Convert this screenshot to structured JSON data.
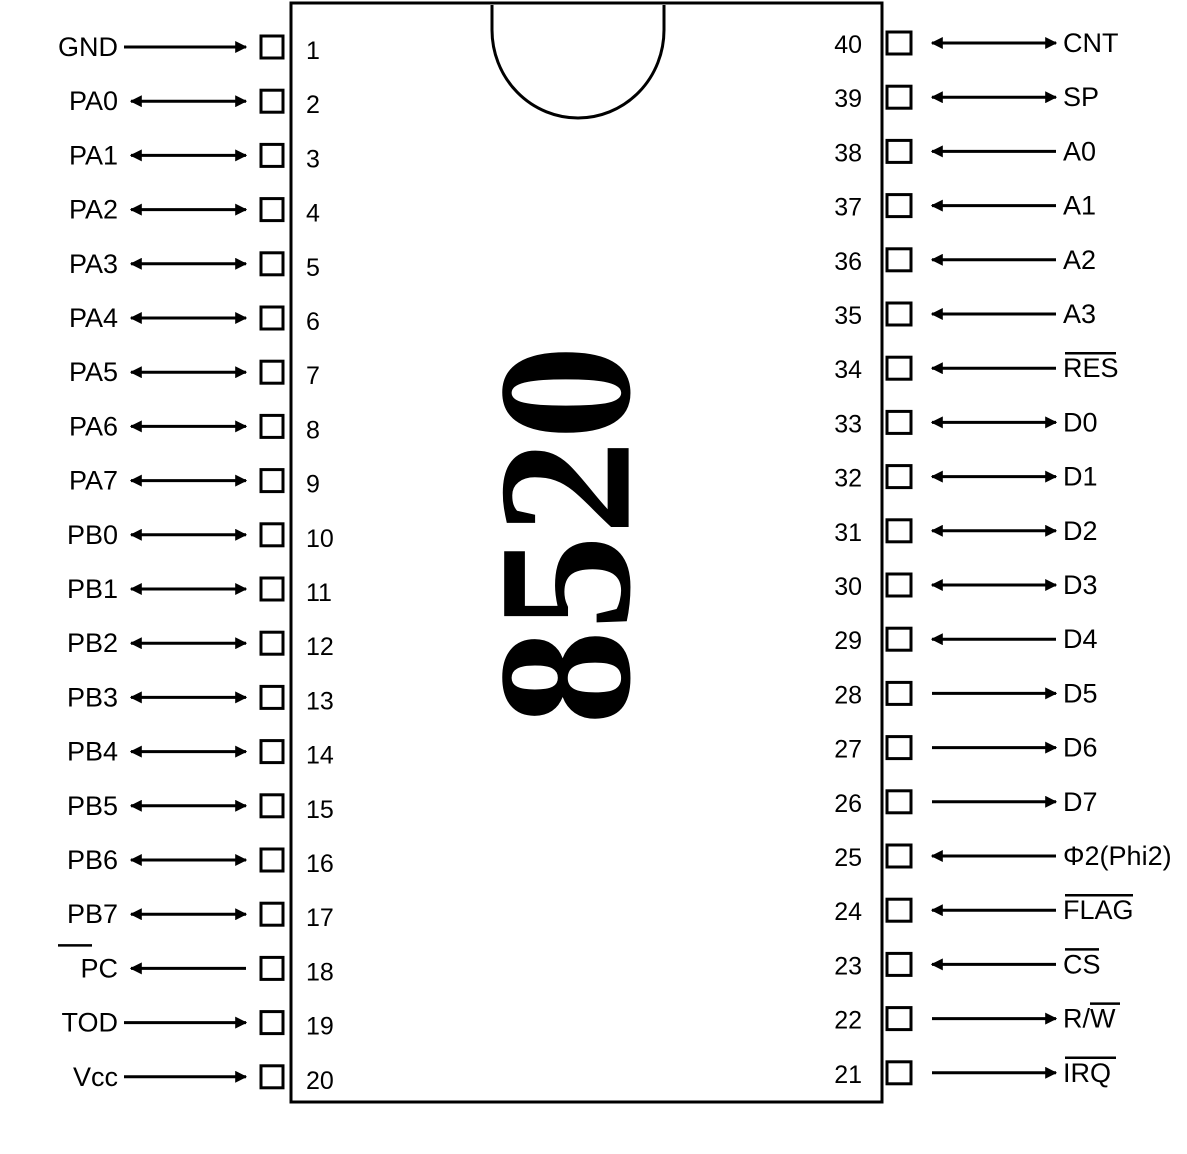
{
  "chip": {
    "label": "8520"
  },
  "left_pins": [
    {
      "number": "1",
      "signal": "GND",
      "direction": "in",
      "overline": false
    },
    {
      "number": "2",
      "signal": "PA0",
      "direction": "bidir",
      "overline": false
    },
    {
      "number": "3",
      "signal": "PA1",
      "direction": "bidir",
      "overline": false
    },
    {
      "number": "4",
      "signal": "PA2",
      "direction": "bidir",
      "overline": false
    },
    {
      "number": "5",
      "signal": "PA3",
      "direction": "bidir",
      "overline": false
    },
    {
      "number": "6",
      "signal": "PA4",
      "direction": "bidir",
      "overline": false
    },
    {
      "number": "7",
      "signal": "PA5",
      "direction": "bidir",
      "overline": false
    },
    {
      "number": "8",
      "signal": "PA6",
      "direction": "bidir",
      "overline": false
    },
    {
      "number": "9",
      "signal": "PA7",
      "direction": "bidir",
      "overline": false
    },
    {
      "number": "10",
      "signal": "PB0",
      "direction": "bidir",
      "overline": false
    },
    {
      "number": "11",
      "signal": "PB1",
      "direction": "bidir",
      "overline": false
    },
    {
      "number": "12",
      "signal": "PB2",
      "direction": "bidir",
      "overline": false
    },
    {
      "number": "13",
      "signal": "PB3",
      "direction": "bidir",
      "overline": false
    },
    {
      "number": "14",
      "signal": "PB4",
      "direction": "bidir",
      "overline": false
    },
    {
      "number": "15",
      "signal": "PB5",
      "direction": "bidir",
      "overline": false
    },
    {
      "number": "16",
      "signal": "PB6",
      "direction": "bidir",
      "overline": false
    },
    {
      "number": "17",
      "signal": "PB7",
      "direction": "bidir",
      "overline": false
    },
    {
      "number": "18",
      "signal": "PC",
      "direction": "out",
      "overline": true
    },
    {
      "number": "19",
      "signal": "TOD",
      "direction": "in",
      "overline": false
    },
    {
      "number": "20",
      "signal": "Vcc",
      "direction": "in",
      "overline": false
    }
  ],
  "right_pins": [
    {
      "number": "40",
      "signal": "CNT",
      "direction": "bidir",
      "overline": false
    },
    {
      "number": "39",
      "signal": "SP",
      "direction": "bidir",
      "overline": false
    },
    {
      "number": "38",
      "signal": "A0",
      "direction": "in",
      "overline": false
    },
    {
      "number": "37",
      "signal": "A1",
      "direction": "in",
      "overline": false
    },
    {
      "number": "36",
      "signal": "A2",
      "direction": "in",
      "overline": false
    },
    {
      "number": "35",
      "signal": "A3",
      "direction": "in",
      "overline": false
    },
    {
      "number": "34",
      "signal": "RES",
      "direction": "in",
      "overline": true
    },
    {
      "number": "33",
      "signal": "D0",
      "direction": "bidir",
      "overline": false
    },
    {
      "number": "32",
      "signal": "D1",
      "direction": "bidir",
      "overline": false
    },
    {
      "number": "31",
      "signal": "D2",
      "direction": "bidir",
      "overline": false
    },
    {
      "number": "30",
      "signal": "D3",
      "direction": "bidir",
      "overline": false
    },
    {
      "number": "29",
      "signal": "D4",
      "direction": "in",
      "overline": false
    },
    {
      "number": "28",
      "signal": "D5",
      "direction": "out",
      "overline": false
    },
    {
      "number": "27",
      "signal": "D6",
      "direction": "out",
      "overline": false
    },
    {
      "number": "26",
      "signal": "D7",
      "direction": "out",
      "overline": false
    },
    {
      "number": "25",
      "signal": "Φ2(Phi2)",
      "direction": "in",
      "overline": false
    },
    {
      "number": "24",
      "signal": "FLAG",
      "direction": "in",
      "overline": true
    },
    {
      "number": "23",
      "signal": "CS",
      "direction": "in",
      "overline": true
    },
    {
      "number": "22",
      "signal": "R/W",
      "direction": "out",
      "overline": false,
      "partial_overline": "W"
    },
    {
      "number": "21",
      "signal": "IRQ",
      "direction": "out",
      "overline": true
    }
  ]
}
